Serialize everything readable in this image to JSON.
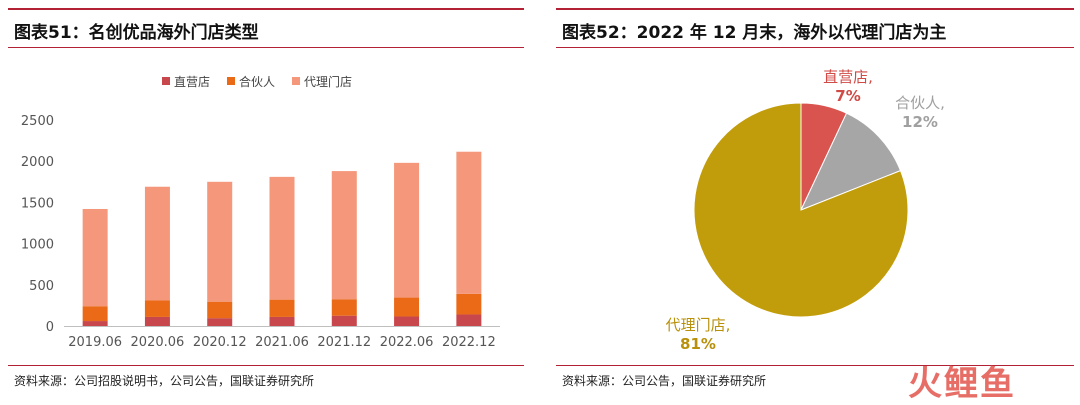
{
  "left": {
    "title": "图表51：名创优品海外门店类型",
    "source": "资料来源：公司招股说明书，公司公告，国联证券研究所",
    "chart_data": {
      "type": "bar",
      "stacked": true,
      "categories": [
        "2019.06",
        "2020.06",
        "2020.12",
        "2021.06",
        "2021.12",
        "2022.06",
        "2022.12"
      ],
      "series": [
        {
          "name": "直营店",
          "color": "#c8474c",
          "values": [
            60,
            110,
            95,
            110,
            125,
            115,
            140
          ]
        },
        {
          "name": "合伙人",
          "color": "#ea6a18",
          "values": [
            180,
            200,
            200,
            210,
            200,
            230,
            250
          ]
        },
        {
          "name": "代理门店",
          "color": "#f4977a",
          "values": [
            1180,
            1380,
            1455,
            1490,
            1555,
            1635,
            1725
          ]
        }
      ],
      "yticks": [
        "0",
        "500",
        "1000",
        "1500",
        "2000",
        "2500"
      ],
      "ylim": [
        0,
        2500
      ],
      "legend": "top",
      "grid": false
    }
  },
  "right": {
    "title": "图表52：2022 年 12 月末，海外以代理门店为主",
    "source": "资料来源：公司公告，国联证券研究所",
    "chart_data": {
      "type": "pie",
      "slices": [
        {
          "name": "直营店,",
          "pct": "7%",
          "value": 7,
          "color": "#d9534f",
          "label_color": "#d04a46"
        },
        {
          "name": "合伙人,",
          "pct": "12%",
          "value": 12,
          "color": "#a6a6a6",
          "label_color": "#a0a0a0"
        },
        {
          "name": "代理门店,",
          "pct": "81%",
          "value": 81,
          "color": "#c29d0b",
          "label_color": "#b8900a"
        }
      ]
    }
  },
  "watermark": "火鲤鱼"
}
